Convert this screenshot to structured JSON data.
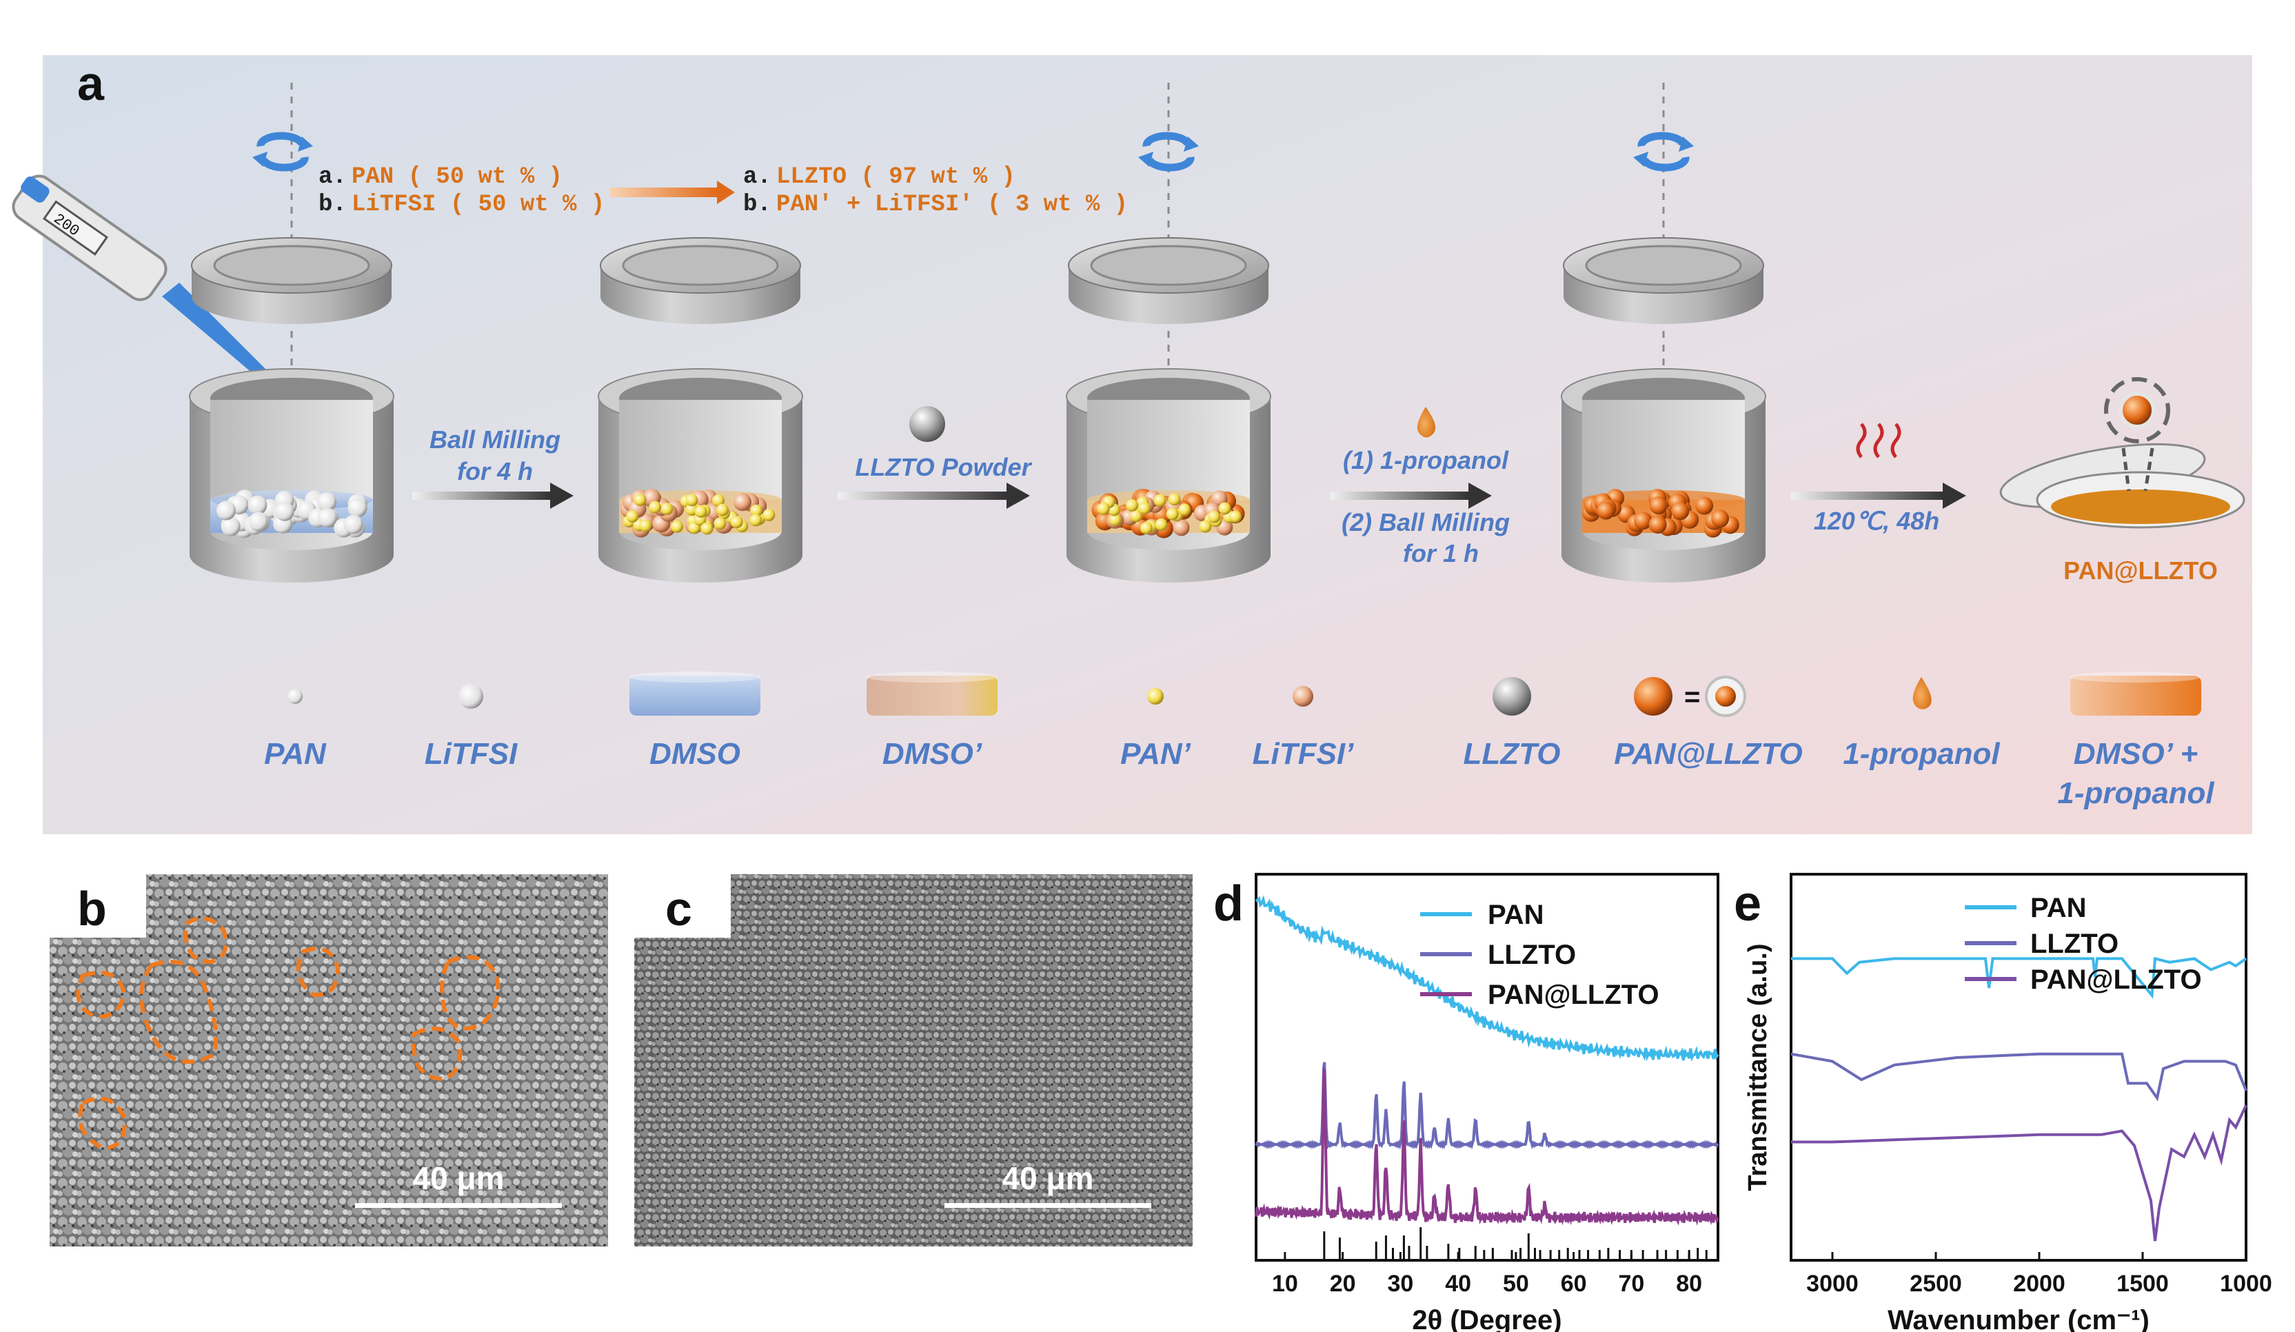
{
  "panel_a": {
    "letter": "a",
    "recipe1": {
      "a_prefix": "a.",
      "a_text": "PAN ( 50 wt % )",
      "b_prefix": "b.",
      "b_text": "LiTFSI ( 50 wt % )"
    },
    "recipe2": {
      "a_prefix": "a.",
      "a_text": "LLZTO ( 97 wt % )",
      "b_prefix": "b.",
      "b_text": "PAN' + LiTFSI' ( 3 wt % )"
    },
    "pipette_reading": "200",
    "step1": [
      "Ball Milling",
      "for 4 h"
    ],
    "step2": "LLZTO Powder",
    "step3": [
      "(1) 1-propanol",
      "(2) Ball Milling",
      "for 1 h"
    ],
    "step4": "120℃, 48h",
    "product": "PAN@LLZTO",
    "legend": [
      {
        "label": "PAN",
        "icon": "small-white-sphere-icon"
      },
      {
        "label": "LiTFSI",
        "icon": "white-sphere-icon"
      },
      {
        "label": "DMSO",
        "icon": "blue-solvent-icon"
      },
      {
        "label": "DMSO’",
        "icon": "tan-solvent-icon"
      },
      {
        "label": "PAN’",
        "icon": "yellow-sphere-icon"
      },
      {
        "label": "LiTFSI’",
        "icon": "peach-sphere-icon"
      },
      {
        "label": "LLZTO",
        "icon": "silver-sphere-icon"
      },
      {
        "label": "PAN@LLZTO",
        "icon": "coated-sphere-icon",
        "equals": "="
      },
      {
        "label": "1-propanol",
        "icon": "droplet-icon"
      },
      {
        "label": "DMSO’ +",
        "label2": "1-propanol",
        "icon": "orange-solvent-icon"
      }
    ],
    "colors": {
      "orange": "#d8721a",
      "blue_label": "#4f7bc4",
      "background_start": "#d6e0ea",
      "background_end": "#f2dadc"
    }
  },
  "panel_b": {
    "letter": "b",
    "scalebar": "40 μm"
  },
  "panel_c": {
    "letter": "c",
    "scalebar": "40 μm"
  },
  "chart_data": [
    {
      "panel": "d",
      "type": "line",
      "xlabel": "2θ (Degree)",
      "ylabel": "",
      "xlim": [
        5,
        85
      ],
      "xticks": [
        10,
        20,
        30,
        40,
        50,
        60,
        70,
        80
      ],
      "legend_position": "top-right",
      "series": [
        {
          "name": "PAN",
          "color": "#3cb8ea",
          "offset": 78,
          "points": [
            [
              5,
              100
            ],
            [
              8,
              96
            ],
            [
              12,
              86
            ],
            [
              16,
              80
            ],
            [
              17,
              84
            ],
            [
              18,
              80
            ],
            [
              22,
              75
            ],
            [
              26,
              70
            ],
            [
              30,
              64
            ],
            [
              35,
              55
            ],
            [
              40,
              45
            ],
            [
              45,
              36
            ],
            [
              50,
              30
            ],
            [
              55,
              26
            ],
            [
              60,
              24
            ],
            [
              65,
              22
            ],
            [
              70,
              21
            ],
            [
              75,
              20
            ],
            [
              80,
              20
            ],
            [
              85,
              20
            ]
          ]
        },
        {
          "name": "LLZTO",
          "color": "#6b6ab8",
          "offset": 50,
          "baseline": 4,
          "peaks": [
            [
              16.8,
              40
            ],
            [
              19.5,
              10
            ],
            [
              25.8,
              24
            ],
            [
              27.5,
              16
            ],
            [
              30.6,
              30
            ],
            [
              33.5,
              24
            ],
            [
              35.9,
              8
            ],
            [
              38.3,
              12
            ],
            [
              43,
              12
            ],
            [
              52.2,
              11
            ],
            [
              55,
              5
            ]
          ]
        },
        {
          "name": "PAN@LLZTO",
          "color": "#8c3b8c",
          "offset": 14,
          "baseline": 6,
          "peaks": [
            [
              16.8,
              70
            ],
            [
              19.5,
              12
            ],
            [
              25.8,
              34
            ],
            [
              27.5,
              24
            ],
            [
              30.6,
              44
            ],
            [
              33.5,
              34
            ],
            [
              35.9,
              10
            ],
            [
              38.3,
              16
            ],
            [
              43,
              14
            ],
            [
              52.2,
              14
            ],
            [
              55,
              6
            ]
          ]
        }
      ],
      "reference_sticks": [
        [
          16.8,
          14
        ],
        [
          19.5,
          11
        ],
        [
          25.8,
          9
        ],
        [
          27.5,
          12
        ],
        [
          28.7,
          6
        ],
        [
          30.6,
          12
        ],
        [
          31.5,
          7
        ],
        [
          33.5,
          16
        ],
        [
          34.6,
          7
        ],
        [
          38.3,
          8
        ],
        [
          40.2,
          6
        ],
        [
          43,
          7
        ],
        [
          44.5,
          5
        ],
        [
          46,
          6
        ],
        [
          49.3,
          5
        ],
        [
          50.8,
          6
        ],
        [
          52.2,
          13
        ],
        [
          53.3,
          6
        ],
        [
          54.2,
          5
        ],
        [
          56,
          5
        ],
        [
          57.5,
          5
        ],
        [
          59,
          6
        ],
        [
          61,
          5
        ],
        [
          62.5,
          5
        ],
        [
          64.5,
          5
        ],
        [
          66,
          6
        ],
        [
          68,
          5
        ],
        [
          70,
          5
        ],
        [
          72,
          5
        ],
        [
          74.5,
          5
        ],
        [
          76,
          5
        ],
        [
          78,
          5
        ],
        [
          80,
          5
        ],
        [
          81.5,
          6
        ],
        [
          83,
          5
        ]
      ]
    },
    {
      "panel": "e",
      "type": "line",
      "xlabel": "Wavenumber (cm⁻¹)",
      "ylabel": "Transmittance (a.u.)",
      "xlim": [
        3200,
        1000
      ],
      "xticks": [
        3000,
        2500,
        2000,
        1500,
        1000
      ],
      "legend_position": "top-right",
      "series": [
        {
          "name": "PAN",
          "color": "#3cb8ea",
          "points": [
            [
              3200,
              80
            ],
            [
              3000,
              80
            ],
            [
              2930,
              76
            ],
            [
              2870,
              79
            ],
            [
              2700,
              80
            ],
            [
              2260,
              80
            ],
            [
              2243,
              72
            ],
            [
              2225,
              80
            ],
            [
              2000,
              80
            ],
            [
              1740,
              80
            ],
            [
              1730,
              75
            ],
            [
              1720,
              80
            ],
            [
              1600,
              80
            ],
            [
              1455,
              70
            ],
            [
              1440,
              80
            ],
            [
              1370,
              79
            ],
            [
              1250,
              80
            ],
            [
              1170,
              77
            ],
            [
              1080,
              79
            ],
            [
              1050,
              78
            ],
            [
              1000,
              80
            ]
          ]
        },
        {
          "name": "LLZTO",
          "color": "#6b6ab8",
          "points": [
            [
              3200,
              54
            ],
            [
              3000,
              52
            ],
            [
              2860,
              47
            ],
            [
              2700,
              51
            ],
            [
              2400,
              53
            ],
            [
              2000,
              54
            ],
            [
              1700,
              54
            ],
            [
              1600,
              54
            ],
            [
              1570,
              46
            ],
            [
              1480,
              46
            ],
            [
              1430,
              42
            ],
            [
              1400,
              50
            ],
            [
              1300,
              52
            ],
            [
              1100,
              52
            ],
            [
              1050,
              51
            ],
            [
              1000,
              44
            ]
          ]
        },
        {
          "name": "PAN@LLZTO",
          "color": "#7a4fa8",
          "points": [
            [
              3200,
              30
            ],
            [
              3000,
              30
            ],
            [
              2500,
              31
            ],
            [
              2000,
              32
            ],
            [
              1700,
              32
            ],
            [
              1600,
              33
            ],
            [
              1540,
              29
            ],
            [
              1460,
              14
            ],
            [
              1440,
              3
            ],
            [
              1420,
              12
            ],
            [
              1360,
              28
            ],
            [
              1300,
              26
            ],
            [
              1250,
              32
            ],
            [
              1200,
              26
            ],
            [
              1160,
              32
            ],
            [
              1120,
              25
            ],
            [
              1080,
              36
            ],
            [
              1050,
              34
            ],
            [
              1000,
              40
            ]
          ]
        }
      ]
    }
  ]
}
